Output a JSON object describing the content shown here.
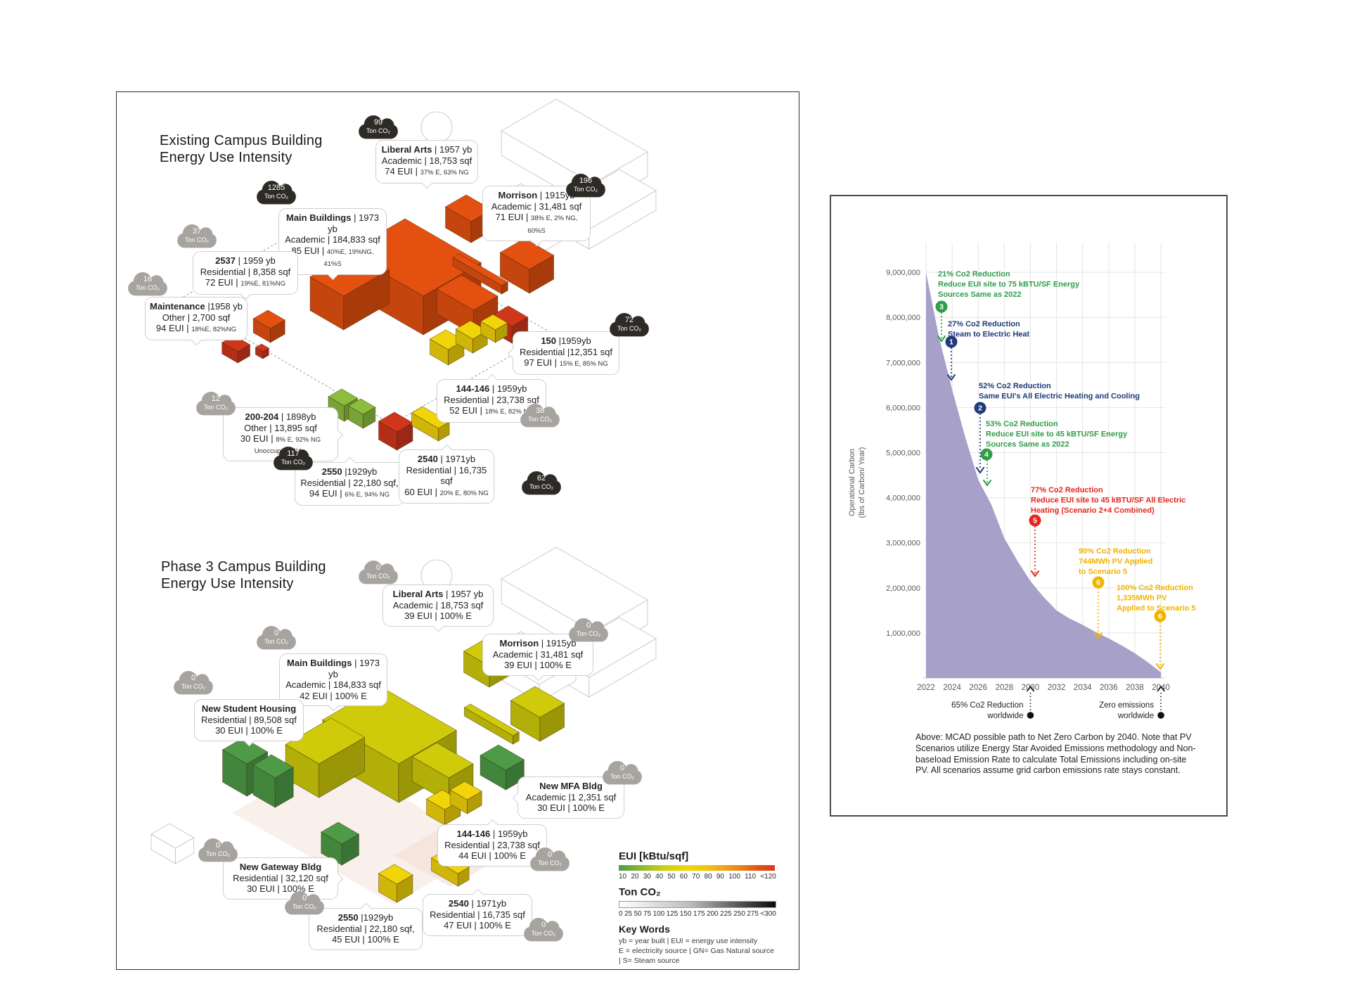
{
  "left_panel": {
    "existing_title_line1": "Existing Campus Building",
    "existing_title_line2": "Energy Use Intensity",
    "phase3_title_line1": "Phase 3 Campus Building",
    "phase3_title_line2": "Energy Use Intensity",
    "existing_map": {
      "clouds": [
        {
          "value": "99",
          "unit": "Ton CO₂",
          "tone": "dark"
        },
        {
          "value": "1285",
          "unit": "Ton CO₂",
          "tone": "dark"
        },
        {
          "value": "196",
          "unit": "Ton CO₂",
          "tone": "dark"
        },
        {
          "value": "72",
          "unit": "Ton CO₂",
          "tone": "dark"
        },
        {
          "value": "117",
          "unit": "Ton CO₂",
          "tone": "dark"
        },
        {
          "value": "62",
          "unit": "Ton CO₂",
          "tone": "dark"
        },
        {
          "value": "37",
          "unit": "Ton CO₂",
          "tone": "gray"
        },
        {
          "value": "16",
          "unit": "Ton CO₂",
          "tone": "gray"
        },
        {
          "value": "12",
          "unit": "Ton CO₂",
          "tone": "gray"
        },
        {
          "value": "38",
          "unit": "Ton CO₂",
          "tone": "gray"
        }
      ],
      "callouts": [
        {
          "id": "liberal_arts",
          "name": "Liberal Arts",
          "rest": " | 1957 yb",
          "line2": "Academic | 18,753 sqf",
          "line3": "74 EUI | ",
          "line3_small": "37% E, 63% NG"
        },
        {
          "id": "main_buildings",
          "name": "Main Buildings",
          "rest": " | 1973 yb",
          "line2": "Academic | 184,833 sqf",
          "line3": "85 EUI | ",
          "line3_small": "40%E, 19%NG, 41%S"
        },
        {
          "id": "b2537",
          "name": "2537",
          "rest": " | 1959 yb",
          "line2": "Residential | 8,358 sqf",
          "line3": "72 EUI | ",
          "line3_small": "19%E, 81%NG"
        },
        {
          "id": "maintenance",
          "name": "Maintenance",
          "rest": " |1958 yb",
          "line2": "Other | 2,700 sqf",
          "line3": "94 EUI | ",
          "line3_small": "18%E, 82%NG"
        },
        {
          "id": "morrison",
          "name": "Morrison",
          "rest": " | 1915yb",
          "line2": "Academic | 31,481 sqf",
          "line3": "71 EUI | ",
          "line3_small": "38% E, 2% NG, 60%S"
        },
        {
          "id": "b150",
          "name": "150",
          "rest": " |1959yb",
          "line2": "Residential |12,351 sqf",
          "line3": "97 EUI | ",
          "line3_small": "15% E, 85% NG"
        },
        {
          "id": "b144",
          "name": "144-146",
          "rest": " | 1959yb",
          "line2": "Residential | 23,738 sqf",
          "line3": "52 EUI | ",
          "line3_small": "18% E, 82% NG"
        },
        {
          "id": "b200",
          "name": "200-204",
          "rest": " | 1898yb",
          "line2": "Other | 13,895 sqf",
          "line3": "30 EUI | ",
          "line3_small": "8% E, 92% NG",
          "line4": "Unoccupied Bldg."
        },
        {
          "id": "b2550",
          "name": "2550",
          "rest": " |1929yb",
          "line2": "Residential | 22,180 sqf,",
          "line3": "94 EUI | ",
          "line3_small": "6% E, 94% NG"
        },
        {
          "id": "b2540",
          "name": "2540",
          "rest": " | 1971yb",
          "line2": "Residential | 16,735 sqf",
          "line3": "60 EUI | ",
          "line3_small": "20% E, 80% NG"
        }
      ]
    },
    "phase3_map": {
      "clouds": [
        {
          "value": "0",
          "unit": "Ton CO₂",
          "tone": "gray"
        },
        {
          "value": "0",
          "unit": "Ton CO₂",
          "tone": "gray"
        },
        {
          "value": "0",
          "unit": "Ton CO₂",
          "tone": "gray"
        },
        {
          "value": "0",
          "unit": "Ton CO₂",
          "tone": "gray"
        },
        {
          "value": "0",
          "unit": "Ton CO₂",
          "tone": "gray"
        },
        {
          "value": "0",
          "unit": "Ton CO₂",
          "tone": "gray"
        },
        {
          "value": "0",
          "unit": "Ton CO₂",
          "tone": "gray"
        },
        {
          "value": "0",
          "unit": "Ton CO₂",
          "tone": "gray"
        },
        {
          "value": "0",
          "unit": "Ton CO₂",
          "tone": "gray"
        }
      ],
      "callouts": [
        {
          "id": "liberal_arts3",
          "name": "Liberal Arts",
          "rest": " | 1957 yb",
          "line2": "Academic | 18,753 sqf",
          "line3": "39 EUI | 100% E"
        },
        {
          "id": "morrison3",
          "name": "Morrison",
          "rest": " | 1915yb",
          "line2": "Academic | 31,481 sqf",
          "line3": "39 EUI | 100% E"
        },
        {
          "id": "main3",
          "name": "Main Buildings",
          "rest": " | 1973 yb",
          "line2": "Academic | 184,833 sqf",
          "line3": "42 EUI | 100% E"
        },
        {
          "id": "nsh",
          "name": "New Student Housing",
          "rest": "",
          "line2": "Residential | 89,508 sqf",
          "line3": "30 EUI | 100% E"
        },
        {
          "id": "nmfa",
          "name": "New MFA Bldg",
          "rest": "",
          "line2": "Academic |1 2,351 sqf",
          "line3": "30 EUI | 100% E"
        },
        {
          "id": "b144_3",
          "name": "144-146",
          "rest": " | 1959yb",
          "line2": "Residential | 23,738 sqf",
          "line3": "44 EUI | 100% E"
        },
        {
          "id": "gateway",
          "name": "New Gateway Bldg",
          "rest": "",
          "line2": "Residential | 32,120 sqf",
          "line3": "30 EUI | 100% E"
        },
        {
          "id": "b2550_3",
          "name": "2550",
          "rest": " |1929yb",
          "line2": "Residential | 22,180 sqf,",
          "line3": "45 EUI | 100% E"
        },
        {
          "id": "b2540_3",
          "name": "2540",
          "rest": " | 1971yb",
          "line2": "Residential | 16,735 sqf",
          "line3": "47 EUI | 100% E"
        }
      ]
    },
    "legend": {
      "eui_title": "EUI [kBtu/sqf]",
      "eui_ticks": [
        "10",
        "20",
        "30",
        "40",
        "50",
        "60",
        "70",
        "80",
        "90",
        "100",
        "110",
        "<120"
      ],
      "co2_title": "Ton CO₂",
      "co2_ticks": [
        "0",
        "25",
        "50",
        "75",
        "100",
        "125",
        "150",
        "175",
        "200",
        "225",
        "250",
        "275",
        "<300"
      ],
      "keywords_title": "Key Words",
      "keywords_line1": "yb = year built | EUI = energy use intensity",
      "keywords_line2": "E = electricity source  | GN= Gas Natural source  | S= Steam source"
    }
  },
  "chart_data": {
    "type": "area",
    "title": "",
    "xlabel": "",
    "ylabel_line1": "Operational Carbon",
    "ylabel_line2": "(lbs of Carbon/ Year)",
    "x": [
      2022,
      2023,
      2024,
      2025,
      2026,
      2027,
      2028,
      2029,
      2030,
      2031,
      2032,
      2033,
      2034,
      2035,
      2036,
      2037,
      2038,
      2039,
      2040
    ],
    "values": [
      9000000,
      7550000,
      6400000,
      5350000,
      4400000,
      3850000,
      3100000,
      2600000,
      2150000,
      1800000,
      1500000,
      1320000,
      1180000,
      1020000,
      880000,
      720000,
      550000,
      350000,
      130000
    ],
    "xticks": [
      "2022",
      "2024",
      "2026",
      "2028",
      "2030",
      "2032",
      "2034",
      "2036",
      "2038",
      "2040"
    ],
    "ytick_labels": [
      "1,000,000",
      "2,000,000",
      "3,000,000",
      "4,000,000",
      "5,000,000",
      "6,000,000",
      "7,000,000",
      "8,000,000",
      "9,000,000"
    ],
    "ylim": [
      0,
      9600000
    ],
    "grid": true,
    "legend_position": "none",
    "area_color": "#a7a1c9",
    "annotations": [
      {
        "n": "3",
        "color": "#2f9e49",
        "lines": [
          "21% Co2 Reduction",
          "Reduce EUI site to 75 kBTU/SF Energy",
          "Sources Same as 2022"
        ]
      },
      {
        "n": "1",
        "color": "#1f3c78",
        "lines": [
          "27% Co2 Reduction",
          "Steam to Electric Heat"
        ]
      },
      {
        "n": "2",
        "color": "#1f3c78",
        "lines": [
          "52% Co2 Reduction",
          "Same EUI's All Electric Heating and Cooling"
        ]
      },
      {
        "n": "4",
        "color": "#2f9e49",
        "lines": [
          "53% Co2 Reduction",
          "Reduce EUI site to 45 kBTU/SF Energy",
          "Sources Same as 2022"
        ]
      },
      {
        "n": "5",
        "color": "#e8251c",
        "lines": [
          "77% Co2 Reduction",
          "Reduce EUI site to 45 kBTU/SF All Electric",
          "Heating (Scenario 2+4 Combined)"
        ]
      },
      {
        "n": "6",
        "color": "#f0b300",
        "lines": [
          "90% Co2 Reduction",
          "744MWh PV Applied",
          "to Scenario 5"
        ]
      },
      {
        "n": "6",
        "color": "#f0b300",
        "lines": [
          "100% Co2 Reduction",
          "1,335MWh PV",
          "Applied to Scenario 5"
        ]
      }
    ],
    "milestones": [
      {
        "year": 2030,
        "lines": [
          "65% Co2 Reduction",
          "worldwide"
        ]
      },
      {
        "year": 2040,
        "lines": [
          "Zero emissions",
          "worldwide"
        ]
      }
    ]
  },
  "caption": "Above: MCAD possible path to Net Zero Carbon by 2040. Note that PV Scenarios utilize Energy Star Avoided Emissions methodology and Non-baseload Emission Rate to calculate Total Emissions including on-site PV. All scenarios assume grid carbon emissions rate stays constant."
}
